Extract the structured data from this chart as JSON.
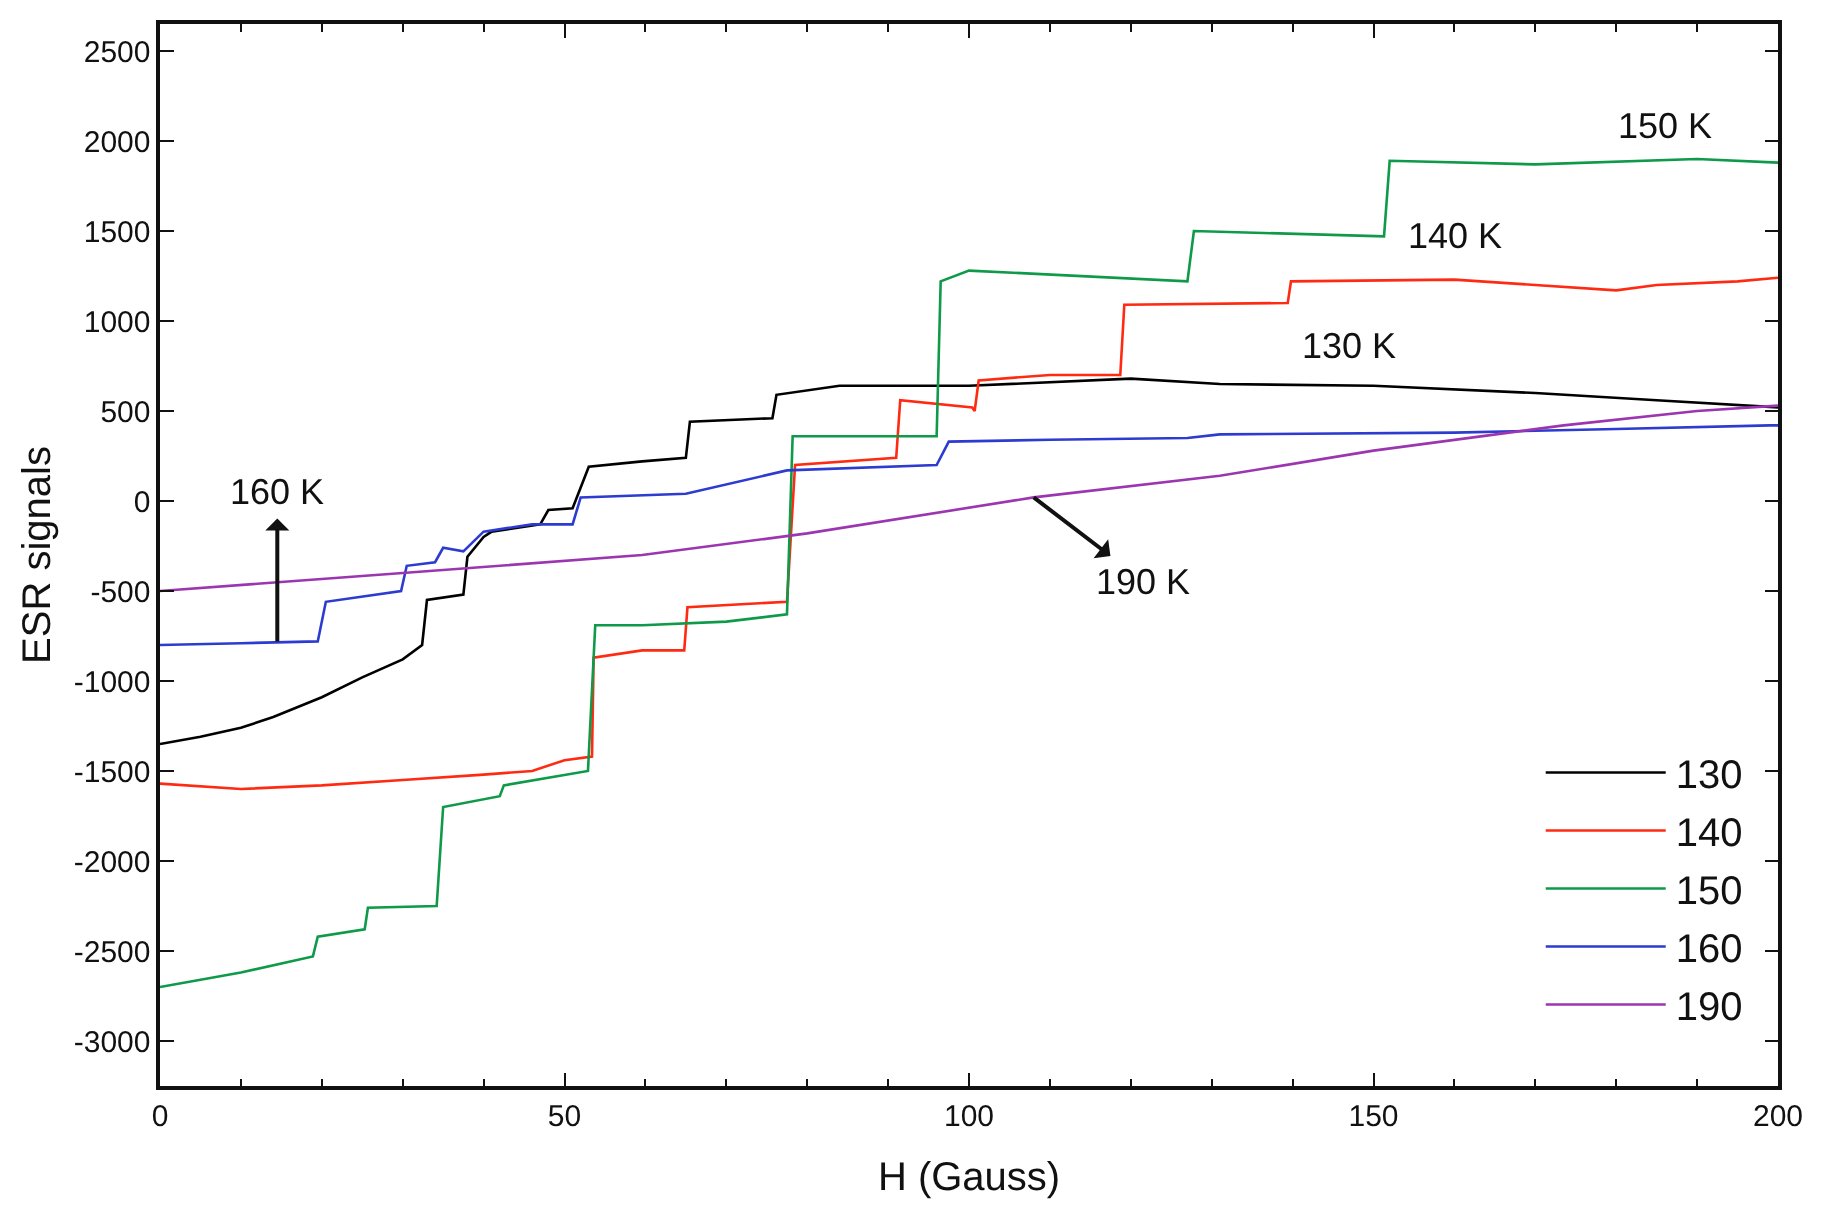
{
  "chart_data": {
    "type": "line",
    "xlabel": "H (Gauss)",
    "ylabel": "ESR signals",
    "xlim": [
      0,
      200
    ],
    "xticks": [
      0,
      50,
      100,
      150,
      200
    ],
    "ylim": [
      -3250,
      2650
    ],
    "yticks": [
      -3000,
      -2500,
      -2000,
      -1500,
      -1000,
      -500,
      0,
      500,
      1000,
      1500,
      2000,
      2500
    ],
    "legend": "bottom right",
    "marker": "none",
    "line_style": "solid",
    "series": [
      {
        "name": "130",
        "color": "#000000",
        "x": [
          0,
          5,
          10,
          14,
          20,
          25,
          30,
          32.4,
          33,
          37.5,
          38,
          40,
          41,
          47,
          48,
          51,
          53,
          59.6,
          65,
          65.5,
          75.7,
          76.2,
          84,
          100,
          120,
          131,
          150,
          170,
          185,
          200
        ],
        "values": [
          -1350,
          -1310,
          -1260,
          -1200,
          -1090,
          -980,
          -880,
          -800,
          -550,
          -520,
          -310,
          -200,
          -170,
          -130,
          -50,
          -40,
          190,
          220,
          240,
          440,
          460,
          590,
          640,
          640,
          680,
          650,
          640,
          600,
          560,
          520
        ]
      },
      {
        "name": "140",
        "color": "#ff2a12",
        "x": [
          0,
          10,
          20,
          30,
          40,
          46,
          50,
          53.4,
          53.6,
          59.6,
          64.8,
          65.2,
          77.5,
          78.5,
          91,
          91.5,
          100.4,
          100.7,
          101.2,
          110,
          118.7,
          119.2,
          139.4,
          139.8,
          160,
          180,
          185,
          195,
          200
        ],
        "values": [
          -1570,
          -1600,
          -1580,
          -1550,
          -1520,
          -1500,
          -1440,
          -1420,
          -870,
          -830,
          -830,
          -590,
          -560,
          200,
          240,
          560,
          520,
          500,
          670,
          700,
          700,
          1090,
          1100,
          1220,
          1230,
          1170,
          1200,
          1220,
          1240
        ]
      },
      {
        "name": "150",
        "color": "#0e9a49",
        "x": [
          0,
          10,
          18.9,
          19.5,
          25.3,
          25.7,
          34.2,
          35,
          42,
          42.5,
          52.9,
          53.8,
          59.6,
          70,
          77.5,
          78.2,
          96,
          96.5,
          100,
          127,
          127.8,
          151.3,
          152,
          170,
          190,
          200
        ],
        "values": [
          -2700,
          -2620,
          -2530,
          -2420,
          -2380,
          -2260,
          -2250,
          -1700,
          -1640,
          -1580,
          -1500,
          -690,
          -690,
          -670,
          -630,
          360,
          360,
          1220,
          1280,
          1220,
          1500,
          1470,
          1890,
          1870,
          1900,
          1880
        ]
      },
      {
        "name": "160",
        "color": "#2d3bd1",
        "x": [
          0,
          10,
          19.5,
          20.5,
          29.8,
          30.5,
          34,
          35,
          37.5,
          40,
          46,
          51,
          52,
          65,
          77.5,
          96,
          97.5,
          110,
          127,
          131,
          160,
          180,
          199,
          200
        ],
        "values": [
          -800,
          -790,
          -780,
          -560,
          -500,
          -360,
          -340,
          -260,
          -280,
          -170,
          -130,
          -130,
          20,
          40,
          170,
          200,
          330,
          340,
          350,
          370,
          380,
          400,
          420,
          420
        ]
      },
      {
        "name": "190",
        "color": "#9b36b0",
        "x": [
          0,
          30,
          59.6,
          80,
          108,
          131,
          150,
          173.5,
          190,
          200
        ],
        "values": [
          -500,
          -400,
          -300,
          -180,
          20,
          140,
          280,
          420,
          500,
          530
        ]
      }
    ],
    "annotations": [
      {
        "text": "150 K",
        "x": 186,
        "y": 1880
      },
      {
        "text": "140 K",
        "x": 160,
        "y": 1230
      },
      {
        "text": "130 K",
        "x": 147,
        "y": 640
      },
      {
        "text": "160 K",
        "x": 14.5,
        "y": -780
      },
      {
        "text": "190 K",
        "x": 108,
        "y": 20
      }
    ]
  }
}
